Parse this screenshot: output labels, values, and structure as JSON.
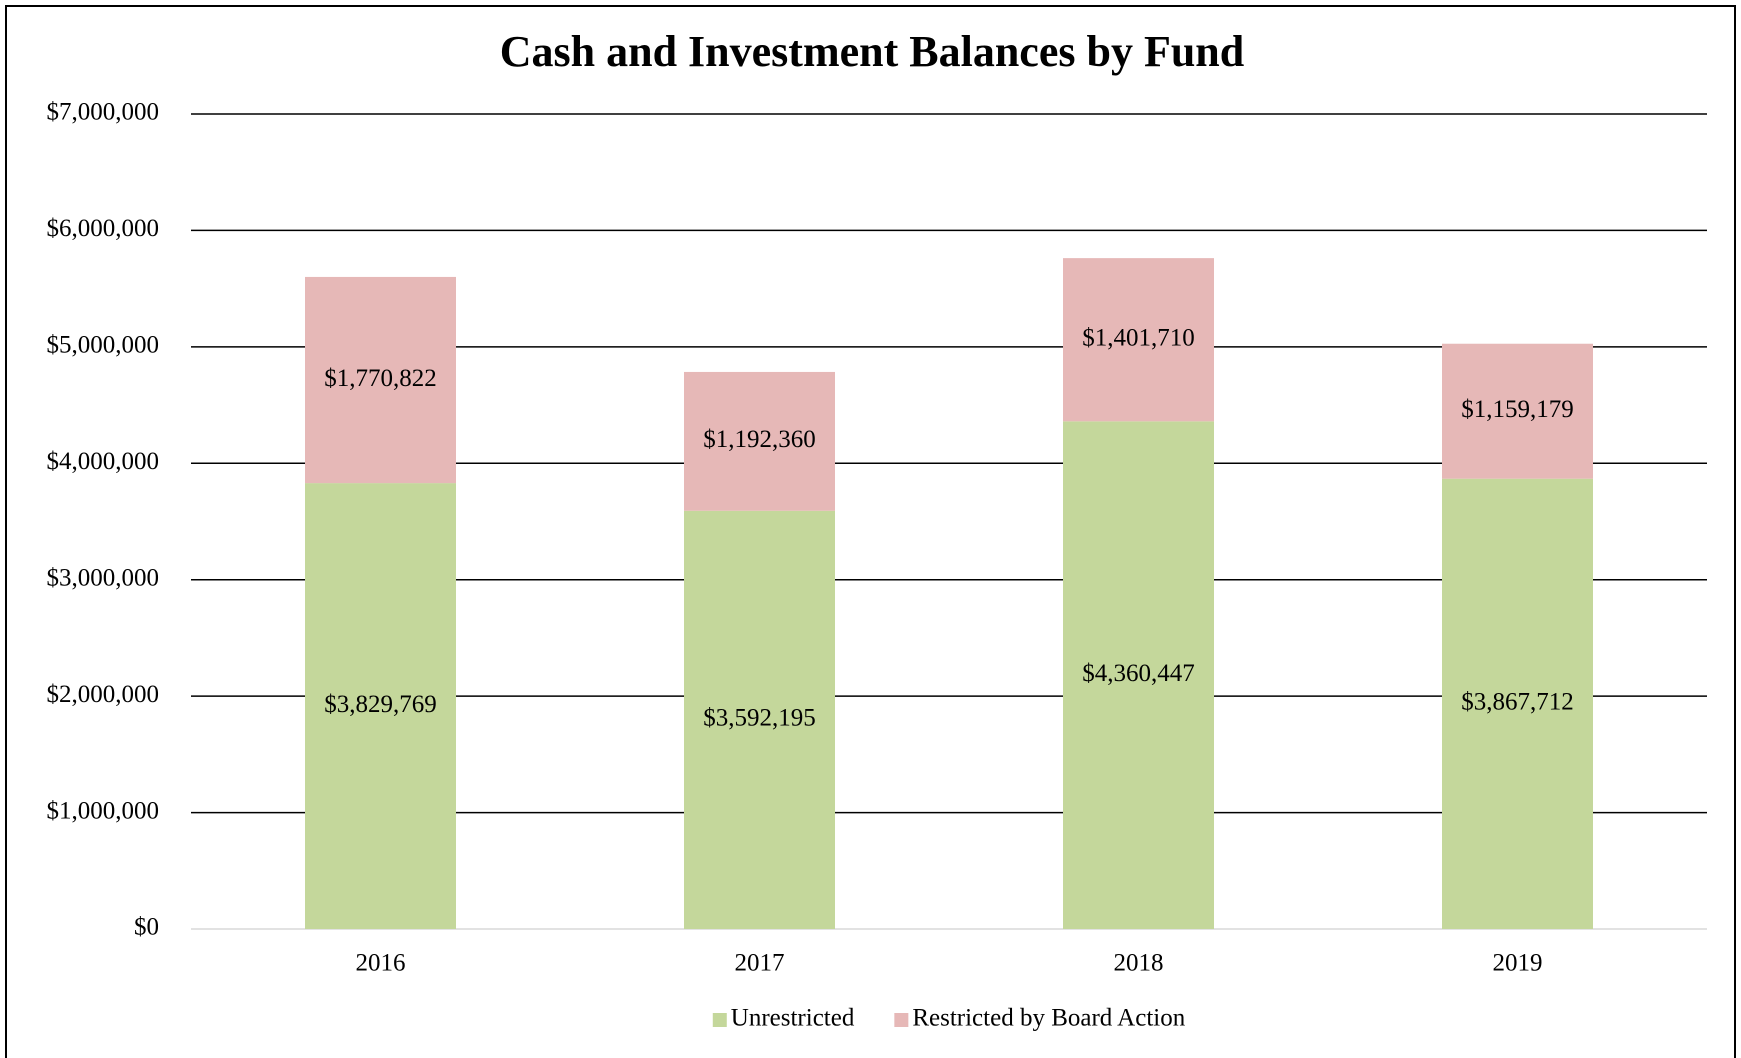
{
  "chart_data": {
    "type": "stacked_bar",
    "title": "Cash and Investment Balances by Fund",
    "categories": [
      "2016",
      "2017",
      "2018",
      "2019"
    ],
    "series": [
      {
        "name": "Unrestricted",
        "color": "#c4d79b",
        "values": [
          3829769,
          3592195,
          4360447,
          3867712
        ],
        "value_labels": [
          "$3,829,769",
          "$3,592,195",
          "$4,360,447",
          "$3,867,712"
        ]
      },
      {
        "name": "Restricted by Board Action",
        "color": "#e6b8b7",
        "values": [
          1770822,
          1192360,
          1401710,
          1159179
        ],
        "value_labels": [
          "$1,770,822",
          "$1,192,360",
          "$1,401,710",
          "$1,159,179"
        ]
      }
    ],
    "ylim": [
      0,
      7000000
    ],
    "yticks": [
      {
        "value": 0,
        "label": "$0"
      },
      {
        "value": 1000000,
        "label": "$1,000,000"
      },
      {
        "value": 2000000,
        "label": "$2,000,000"
      },
      {
        "value": 3000000,
        "label": "$3,000,000"
      },
      {
        "value": 4000000,
        "label": "$4,000,000"
      },
      {
        "value": 5000000,
        "label": "$5,000,000"
      },
      {
        "value": 6000000,
        "label": "$6,000,000"
      },
      {
        "value": 7000000,
        "label": "$7,000,000"
      }
    ],
    "grid": true,
    "legend": "bottom"
  }
}
